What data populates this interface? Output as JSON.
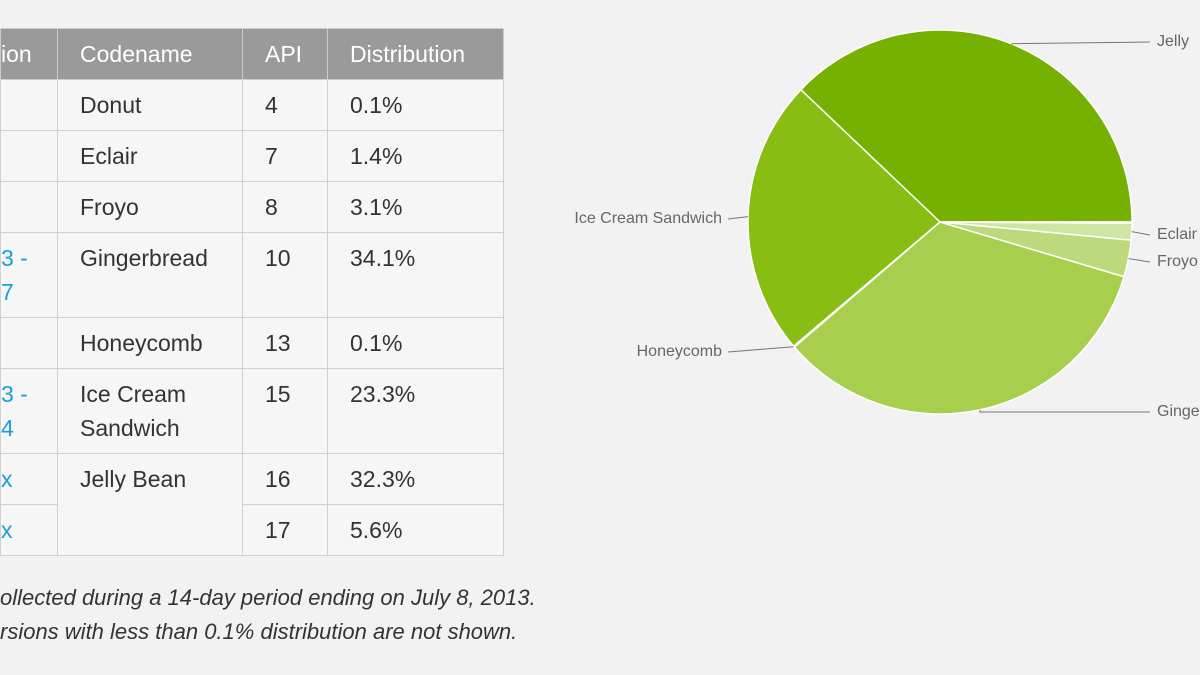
{
  "table": {
    "header": [
      "ion",
      "Codename",
      "API",
      "Distribution"
    ],
    "rows": [
      [
        null,
        "Donut",
        "4",
        "0.1%"
      ],
      [
        null,
        "Eclair",
        "7",
        "1.4%"
      ],
      [
        null,
        "Froyo",
        "8",
        "3.1%"
      ],
      [
        "3 -\n7",
        "Gingerbread",
        "10",
        "34.1%"
      ],
      [
        null,
        "Honeycomb",
        "13",
        "0.1%"
      ],
      [
        "3 -\n4",
        "Ice Cream\nSandwich",
        "15",
        "23.3%"
      ],
      [
        "x",
        "Jelly Bean",
        "16",
        "32.3%"
      ],
      [
        "x",
        null,
        "17",
        "5.6%"
      ]
    ]
  },
  "footnotes": [
    "ollected during a 14-day period ending on July 8, 2013.",
    "rsions with less than 0.1% distribution are not shown."
  ],
  "chart_data": {
    "type": "pie",
    "labels": [
      "Jelly",
      "Ice Cream Sandwich",
      "Honeycomb",
      "Ginge",
      "Froyo",
      "Eclair",
      null
    ],
    "values": [
      37.9,
      23.3,
      0.1,
      34.1,
      3.1,
      1.4,
      0.1
    ],
    "colors": [
      "#76b000",
      "#88bd14",
      "#9ac52e",
      "#a7cf4d",
      "#bcda7c",
      "#cfe5a3",
      "#dcecc0"
    ]
  }
}
